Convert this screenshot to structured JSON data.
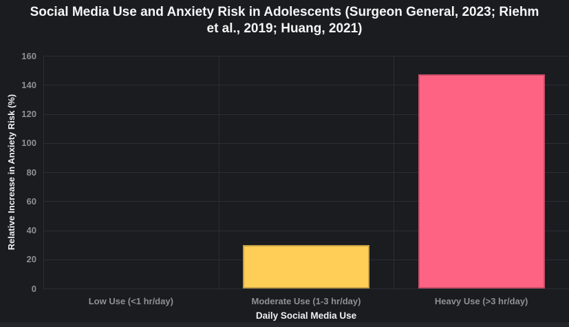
{
  "page": {
    "background_color": "#242529"
  },
  "chart": {
    "canvas_background": "#1a1c20",
    "grid_color": "#2b2e35",
    "tick_label_color": "#8d9095",
    "axis_title_color": "#f0f0f0",
    "title_color": "#f5f5f5"
  },
  "chart_data": {
    "type": "bar",
    "title": "Social Media Use and Anxiety Risk in Adolescents (Surgeon General, 2023; Riehm et al., 2019; Huang, 2021)",
    "title_lines": [
      "Social Media Use and Anxiety Risk in Adolescents (Surgeon General, 2023; Riehm",
      "et al., 2019; Huang, 2021)"
    ],
    "xlabel": "Daily Social Media Use",
    "ylabel": "Relative Increase in Anxiety Risk (%)",
    "categories": [
      "Low Use (<1 hr/day)",
      "Moderate Use (1-3 hr/day)",
      "Heavy Use (>3 hr/day)"
    ],
    "values": [
      0,
      30,
      147
    ],
    "bar_colors": [
      null,
      "#ffce56",
      "#ff6384"
    ],
    "bar_border_colors": [
      null,
      "#c7a144",
      "#c94e68"
    ],
    "ylim": [
      0,
      160
    ],
    "yticks": [
      0,
      20,
      40,
      60,
      80,
      100,
      120,
      140,
      160
    ],
    "grid": true,
    "legend": "none"
  }
}
